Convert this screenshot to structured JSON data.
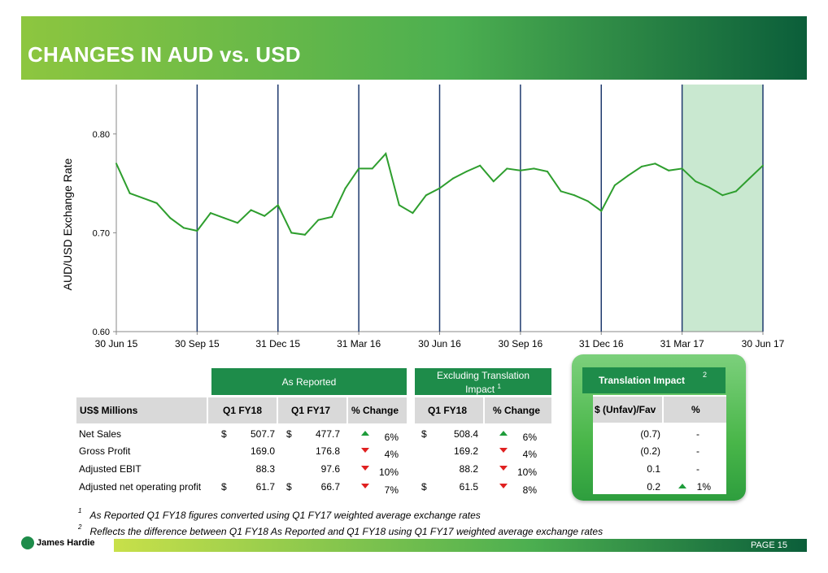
{
  "header": {
    "title": "CHANGES IN AUD vs. USD"
  },
  "colors": {
    "line": "#2e9e2e",
    "highlight": "#c9e8d0",
    "brand_green": "#1e8c4a"
  },
  "chart_data": {
    "type": "line",
    "ylabel": "AUD/USD Exchange Rate",
    "ylim": [
      0.6,
      0.85
    ],
    "yticks": [
      "0.60",
      "0.70",
      "0.80"
    ],
    "xticks": [
      "30 Jun 15",
      "30 Sep 15",
      "31 Dec 15",
      "31 Mar 16",
      "30 Jun 16",
      "30 Sep 16",
      "31 Dec 16",
      "31 Mar 17",
      "30 Jun 17"
    ],
    "highlight_period": [
      "31 Mar 17",
      "30 Jun 17"
    ],
    "series": [
      {
        "x": [
          "30 Jun 15",
          "15 Jul 15",
          "31 Jul 15",
          "15 Aug 15",
          "31 Aug 15",
          "15 Sep 15",
          "30 Sep 15",
          "15 Oct 15",
          "31 Oct 15",
          "15 Nov 15",
          "30 Nov 15",
          "15 Dec 15",
          "31 Dec 15",
          "15 Jan 16",
          "31 Jan 16",
          "15 Feb 16",
          "29 Feb 16",
          "15 Mar 16",
          "31 Mar 16",
          "15 Apr 16",
          "30 Apr 16",
          "15 May 16",
          "31 May 16",
          "15 Jun 16",
          "30 Jun 16",
          "15 Jul 16",
          "31 Jul 16",
          "15 Aug 16",
          "31 Aug 16",
          "15 Sep 16",
          "30 Sep 16",
          "15 Oct 16",
          "31 Oct 16",
          "15 Nov 16",
          "30 Nov 16",
          "15 Dec 16",
          "31 Dec 16",
          "15 Jan 17",
          "31 Jan 17",
          "15 Feb 17",
          "28 Feb 17",
          "15 Mar 17",
          "31 Mar 17",
          "15 Apr 17",
          "30 Apr 17",
          "15 May 17",
          "31 May 17",
          "15 Jun 17",
          "30 Jun 17"
        ],
        "values": [
          0.77,
          0.74,
          0.735,
          0.73,
          0.715,
          0.705,
          0.702,
          0.72,
          0.715,
          0.71,
          0.723,
          0.717,
          0.728,
          0.7,
          0.698,
          0.713,
          0.716,
          0.745,
          0.765,
          0.765,
          0.78,
          0.728,
          0.72,
          0.738,
          0.745,
          0.755,
          0.762,
          0.768,
          0.752,
          0.765,
          0.763,
          0.765,
          0.762,
          0.742,
          0.738,
          0.732,
          0.722,
          0.748,
          0.758,
          0.767,
          0.77,
          0.763,
          0.765,
          0.752,
          0.746,
          0.738,
          0.742,
          0.755,
          0.768
        ]
      }
    ]
  },
  "table": {
    "group_as_reported": "As Reported",
    "group_excluding_line1": "Excluding Translation",
    "group_excluding_line2": "Impact",
    "group_excluding_sup": "1",
    "col_label": "US$ Millions",
    "col_q1fy18": "Q1 FY18",
    "col_q1fy17": "Q1 FY17",
    "col_change": "% Change",
    "col_ex_q1fy18": "Q1 FY18",
    "col_ex_change": "% Change",
    "rows": [
      {
        "label": "Net Sales",
        "cur1": "$",
        "q1fy18": "507.7",
        "cur2": "$",
        "q1fy17": "477.7",
        "dir": "up",
        "pct": "6%",
        "cur3": "$",
        "ex_q1fy18": "508.4",
        "ex_dir": "up",
        "ex_pct": "6%"
      },
      {
        "label": "Gross Profit",
        "cur1": "",
        "q1fy18": "169.0",
        "cur2": "",
        "q1fy17": "176.8",
        "dir": "down",
        "pct": "4%",
        "cur3": "",
        "ex_q1fy18": "169.2",
        "ex_dir": "down",
        "ex_pct": "4%"
      },
      {
        "label": "Adjusted EBIT",
        "cur1": "",
        "q1fy18": "88.3",
        "cur2": "",
        "q1fy17": "97.6",
        "dir": "down",
        "pct": "10%",
        "cur3": "",
        "ex_q1fy18": "88.2",
        "ex_dir": "down",
        "ex_pct": "10%"
      },
      {
        "label": "Adjusted net operating profit",
        "cur1": "$",
        "q1fy18": "61.7",
        "cur2": "$",
        "q1fy17": "66.7",
        "dir": "down",
        "pct": "7%",
        "cur3": "$",
        "ex_q1fy18": "61.5",
        "ex_dir": "down",
        "ex_pct": "8%"
      }
    ]
  },
  "translation": {
    "title": "Translation Impact",
    "title_sup": "2",
    "col_fav": "$ (Unfav)/Fav",
    "col_pct": "%",
    "rows": [
      {
        "val": "(0.7)",
        "dir": "",
        "pct": "-"
      },
      {
        "val": "(0.2)",
        "dir": "",
        "pct": "-"
      },
      {
        "val": "0.1",
        "dir": "",
        "pct": "-"
      },
      {
        "val": "0.2",
        "dir": "up",
        "pct": "1%"
      }
    ]
  },
  "footnotes": {
    "n1": "1",
    "f1": "As Reported Q1 FY18 figures converted using Q1 FY17 weighted average exchange rates",
    "n2": "2",
    "f2": "Reflects the difference between Q1 FY18 As Reported and Q1 FY18 using Q1 FY17 weighted average exchange rates"
  },
  "footer": {
    "logo": "James Hardie",
    "page": "PAGE  15"
  }
}
